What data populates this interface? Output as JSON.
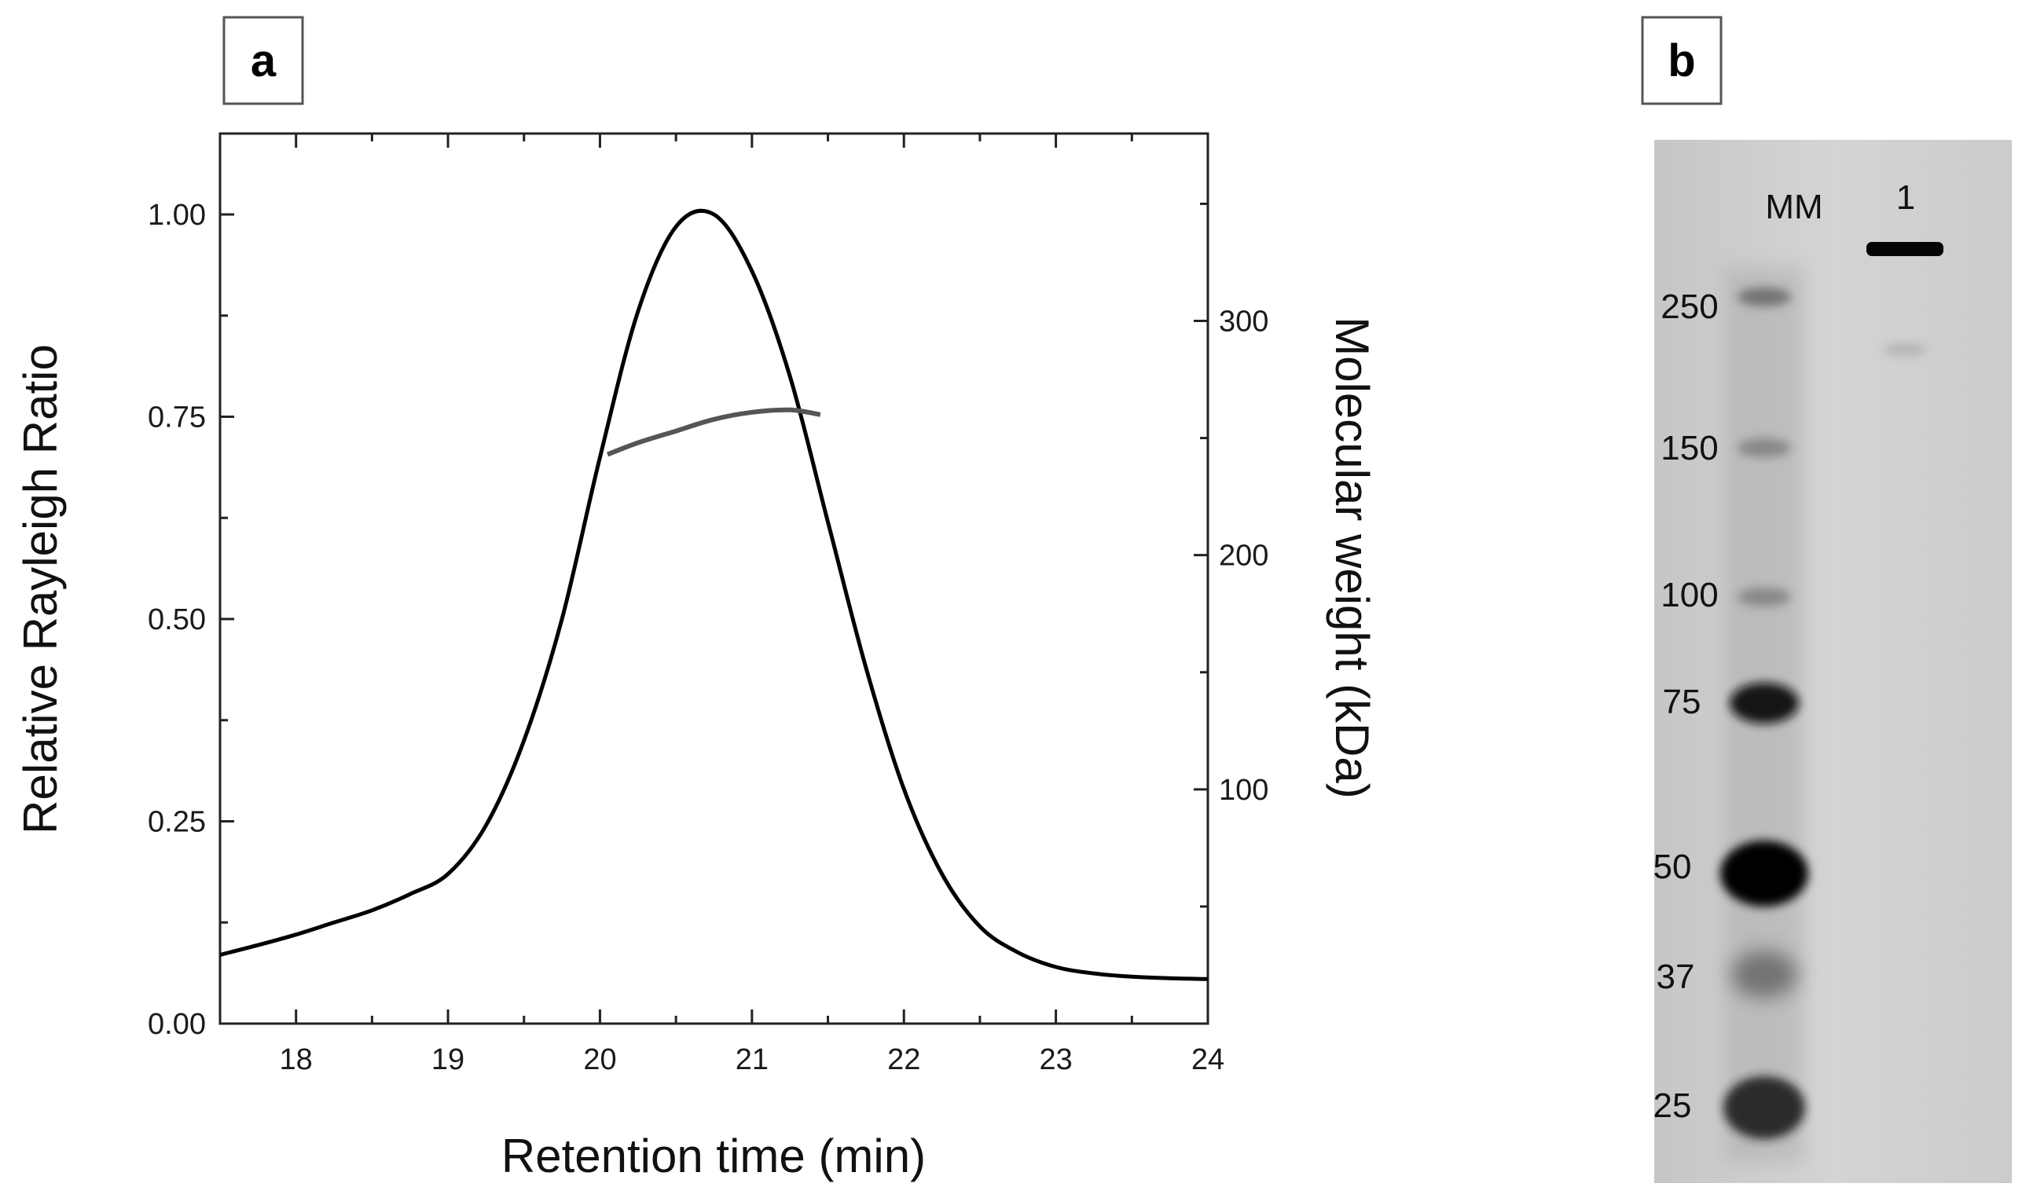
{
  "panels": {
    "a_label": "a",
    "b_label": "b"
  },
  "colors": {
    "rayleigh": "#000000",
    "mw": "#555555",
    "gel_bg": "#cfcfcf",
    "band": "#0a0a0a"
  },
  "chart_data": {
    "type": "line",
    "xlabel": "Retention time (min)",
    "ylabel": "Relative Rayleigh Ratio",
    "y2label": "Molecular weight (kDa)",
    "xlim": [
      17.5,
      24
    ],
    "ylim": [
      0,
      1.1
    ],
    "y2lim": [
      0,
      380
    ],
    "xticks": [
      18,
      19,
      20,
      21,
      22,
      23,
      24
    ],
    "yticks": [
      0.0,
      0.25,
      0.5,
      0.75,
      1.0
    ],
    "ytick_labels": [
      "0.00",
      "0.25",
      "0.50",
      "0.75",
      "1.00"
    ],
    "y2ticks": [
      100,
      200,
      300
    ],
    "series": [
      {
        "name": "Relative Rayleigh Ratio",
        "axis": "left",
        "x": [
          17.5,
          17.75,
          18.0,
          18.25,
          18.5,
          18.75,
          19.0,
          19.25,
          19.5,
          19.75,
          20.0,
          20.25,
          20.5,
          20.75,
          21.0,
          21.25,
          21.5,
          21.75,
          22.0,
          22.25,
          22.5,
          22.75,
          23.0,
          23.25,
          23.5,
          23.75,
          24.0
        ],
        "y": [
          0.085,
          0.097,
          0.11,
          0.125,
          0.14,
          0.16,
          0.185,
          0.245,
          0.35,
          0.5,
          0.7,
          0.88,
          0.985,
          1.0,
          0.93,
          0.8,
          0.62,
          0.44,
          0.29,
          0.185,
          0.12,
          0.088,
          0.07,
          0.062,
          0.058,
          0.056,
          0.055
        ]
      },
      {
        "name": "Molecular weight",
        "axis": "right",
        "x": [
          20.05,
          20.25,
          20.5,
          20.75,
          21.0,
          21.25,
          21.45
        ],
        "y": [
          243,
          248,
          253,
          258,
          261,
          262,
          260
        ]
      }
    ]
  },
  "gel": {
    "lanes": [
      "MM",
      "1"
    ],
    "markers": [
      "250",
      "150",
      "100",
      "75",
      "50",
      "37",
      "25"
    ]
  }
}
